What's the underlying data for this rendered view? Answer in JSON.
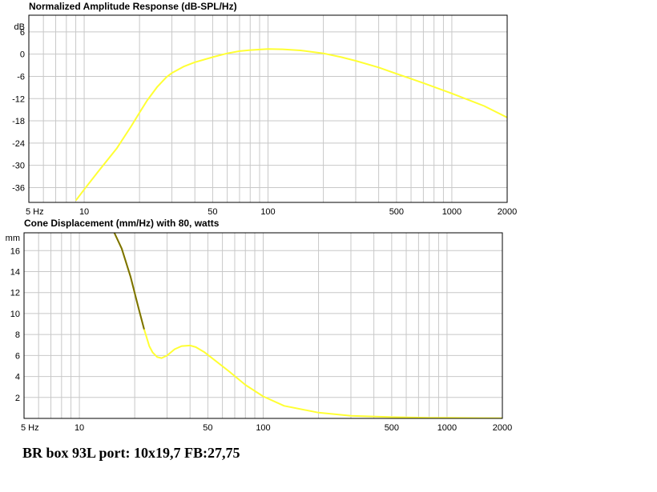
{
  "chart_data": [
    {
      "type": "line",
      "title": "Normalized Amplitude Response (dB-SPL/Hz)",
      "xscale": "log",
      "xlim": [
        5,
        2000
      ],
      "ylim": [
        -40,
        10.5
      ],
      "yunit": "dB",
      "x_tick_labels": [
        {
          "value": 5,
          "label": "5 Hz"
        },
        {
          "value": 10,
          "label": "10"
        },
        {
          "value": 50,
          "label": "50"
        },
        {
          "value": 100,
          "label": "100"
        },
        {
          "value": 500,
          "label": "500"
        },
        {
          "value": 1000,
          "label": "1000"
        },
        {
          "value": 2000,
          "label": "2000"
        }
      ],
      "y_tick_labels": [
        {
          "value": 6,
          "label": "6"
        },
        {
          "value": 0,
          "label": "0"
        },
        {
          "value": -6,
          "label": "-6"
        },
        {
          "value": -12,
          "label": "-12"
        },
        {
          "value": -18,
          "label": "-18"
        },
        {
          "value": -24,
          "label": "-24"
        },
        {
          "value": -30,
          "label": "-30"
        },
        {
          "value": -36,
          "label": "-36"
        }
      ],
      "grid": true,
      "line_color": "#ffff33",
      "series": [
        {
          "x": [
            9,
            10,
            12,
            15,
            18,
            20,
            22,
            25,
            28,
            30,
            35,
            40,
            50,
            60,
            70,
            80,
            100,
            120,
            150,
            200,
            250,
            300,
            400,
            500,
            700,
            1000,
            1500,
            2000
          ],
          "y": [
            -39.5,
            -36.5,
            -31.5,
            -25.5,
            -19.5,
            -15.8,
            -12.5,
            -8.8,
            -6.2,
            -5.1,
            -3.3,
            -2.2,
            -0.8,
            0.2,
            0.8,
            1.1,
            1.4,
            1.3,
            1.0,
            0.2,
            -0.8,
            -1.8,
            -3.6,
            -5.3,
            -7.8,
            -10.6,
            -14.0,
            -17.1
          ]
        }
      ]
    },
    {
      "type": "line",
      "title": "Cone Displacement (mm/Hz) with 80, watts",
      "xscale": "log",
      "xlim": [
        5,
        2000
      ],
      "ylim": [
        0,
        17.7
      ],
      "yunit": "mm",
      "x_tick_labels": [
        {
          "value": 5,
          "label": "5 Hz"
        },
        {
          "value": 10,
          "label": "10"
        },
        {
          "value": 50,
          "label": "50"
        },
        {
          "value": 100,
          "label": "100"
        },
        {
          "value": 500,
          "label": "500"
        },
        {
          "value": 1000,
          "label": "1000"
        },
        {
          "value": 2000,
          "label": "2000"
        }
      ],
      "y_tick_labels": [
        {
          "value": 16,
          "label": "16"
        },
        {
          "value": 14,
          "label": "14"
        },
        {
          "value": 12,
          "label": "12"
        },
        {
          "value": 10,
          "label": "10"
        },
        {
          "value": 8,
          "label": "8"
        },
        {
          "value": 6,
          "label": "6"
        },
        {
          "value": 4,
          "label": "4"
        },
        {
          "value": 2,
          "label": "2"
        }
      ],
      "grid": true,
      "line_color": "#ffff33",
      "dark_color": "#7a7000",
      "series": [
        {
          "x": [
            15.5,
            17,
            19,
            21,
            22.5,
            24,
            25,
            26.5,
            28,
            30,
            33,
            36,
            40,
            43,
            48,
            55,
            65,
            80,
            100,
            130,
            200,
            300,
            500,
            800,
            1000,
            1500,
            2000
          ],
          "y": [
            17.7,
            16.2,
            13.5,
            10.5,
            8.5,
            6.9,
            6.3,
            5.85,
            5.75,
            6.0,
            6.6,
            6.9,
            6.95,
            6.8,
            6.3,
            5.5,
            4.5,
            3.2,
            2.1,
            1.2,
            0.55,
            0.25,
            0.12,
            0.06,
            0.05,
            0.03,
            0.02
          ],
          "dark_until": 22.5
        }
      ]
    }
  ],
  "caption": "BR box 93L port: 10x19,7 FB:27,75"
}
